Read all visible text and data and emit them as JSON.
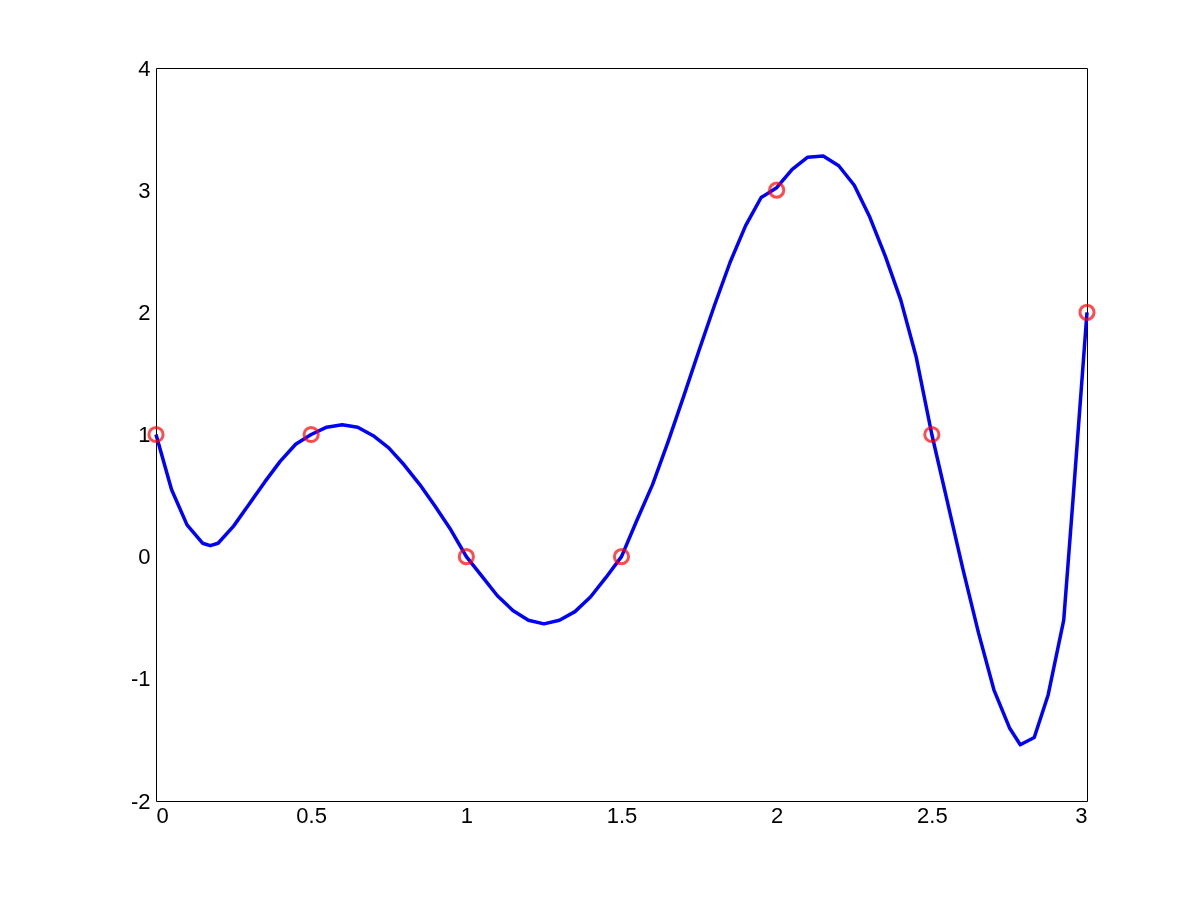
{
  "chart_data": {
    "type": "line",
    "xlim": [
      0,
      3
    ],
    "ylim": [
      -2,
      4
    ],
    "xticks": [
      0,
      0.5,
      1,
      1.5,
      2,
      2.5,
      3
    ],
    "yticks": [
      -2,
      -1,
      0,
      1,
      2,
      3,
      4
    ],
    "grid": false,
    "series": [
      {
        "color": "#0000ff",
        "marker": "none",
        "line_style": "solid",
        "x": [
          0,
          0.05,
          0.1,
          0.15,
          0.175,
          0.2,
          0.25,
          0.3,
          0.35,
          0.4,
          0.45,
          0.5,
          0.55,
          0.6,
          0.65,
          0.7,
          0.75,
          0.8,
          0.85,
          0.9,
          0.95,
          1.0,
          1.05,
          1.1,
          1.15,
          1.2,
          1.25,
          1.3,
          1.35,
          1.4,
          1.45,
          1.5,
          1.55,
          1.6,
          1.65,
          1.7,
          1.75,
          1.8,
          1.85,
          1.9,
          1.95,
          2.0,
          2.05,
          2.1,
          2.15,
          2.2,
          2.25,
          2.3,
          2.35,
          2.4,
          2.45,
          2.5,
          2.55,
          2.6,
          2.65,
          2.7,
          2.75,
          2.785,
          2.83,
          2.875,
          2.925,
          2.955,
          3.0
        ],
        "values": [
          1.0,
          0.55,
          0.26,
          0.11,
          0.09,
          0.11,
          0.25,
          0.43,
          0.61,
          0.78,
          0.92,
          1.0,
          1.06,
          1.08,
          1.06,
          0.99,
          0.89,
          0.75,
          0.59,
          0.41,
          0.22,
          0,
          -0.16,
          -0.32,
          -0.44,
          -0.52,
          -0.55,
          -0.52,
          -0.45,
          -0.33,
          -0.17,
          0,
          0.3,
          0.59,
          0.94,
          1.31,
          1.69,
          2.06,
          2.41,
          2.71,
          2.94,
          3.02,
          3.17,
          3.27,
          3.28,
          3.2,
          3.04,
          2.78,
          2.46,
          2.1,
          1.63,
          1.0,
          0.45,
          -0.1,
          -0.62,
          -1.09,
          -1.4,
          -1.54,
          -1.48,
          -1.13,
          -0.52,
          0.47,
          2.0
        ]
      },
      {
        "type": "scatter",
        "color": "#ff0000",
        "marker": "circle",
        "x": [
          0,
          0.5,
          1,
          1.5,
          2,
          2.5,
          3
        ],
        "values": [
          1,
          1,
          0,
          0,
          3,
          1,
          2
        ]
      }
    ]
  }
}
